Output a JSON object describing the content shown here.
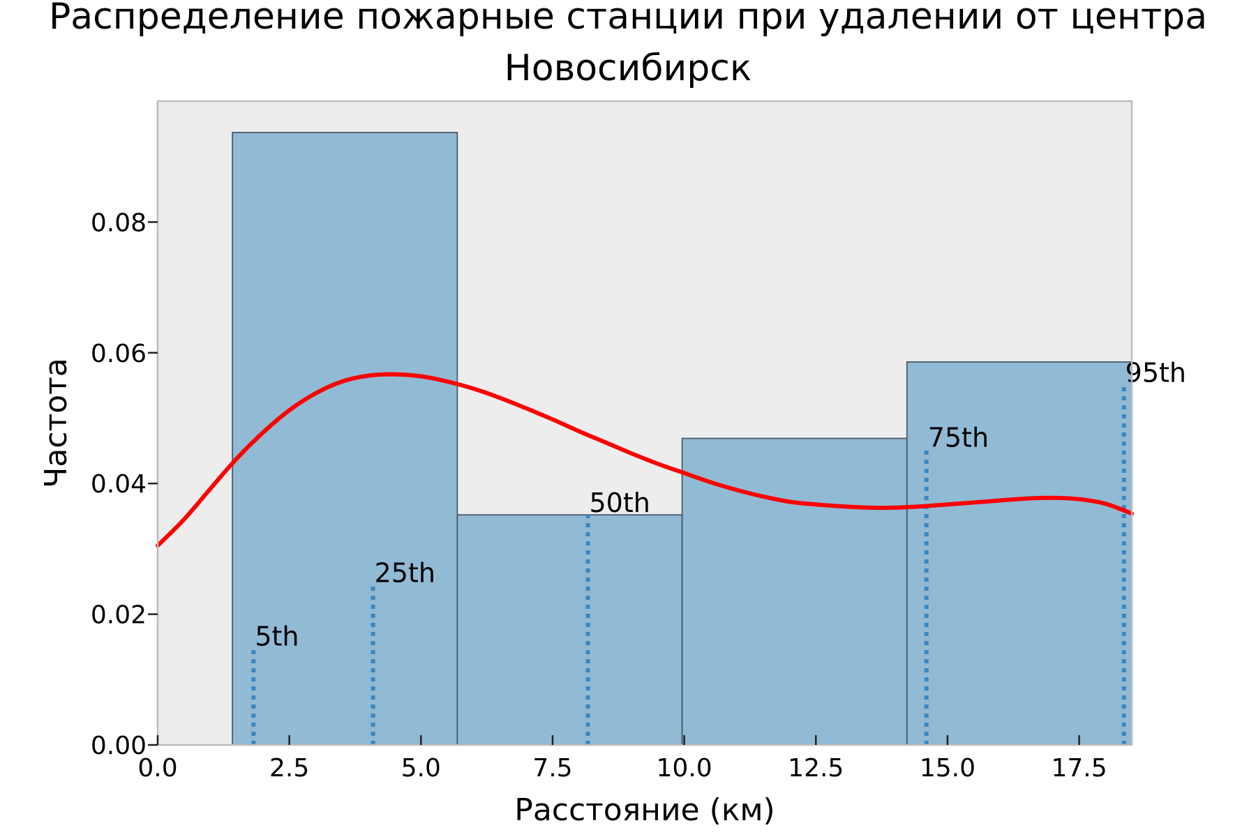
{
  "chart_data": {
    "type": "bar",
    "title_lines": [
      "Распределение пожарные станции при удалении от центра",
      "Новосибирск"
    ],
    "xlabel": "Расстояние (км)",
    "ylabel": "Частота",
    "xlim": [
      0,
      18.5
    ],
    "ylim": [
      0,
      0.0985
    ],
    "x_ticks": [
      0.0,
      2.5,
      5.0,
      7.5,
      10.0,
      12.5,
      15.0,
      17.5
    ],
    "x_tick_labels": [
      "0.0",
      "2.5",
      "5.0",
      "7.5",
      "10.0",
      "12.5",
      "15.0",
      "17.5"
    ],
    "y_ticks": [
      0.0,
      0.02,
      0.04,
      0.06,
      0.08
    ],
    "y_tick_labels": [
      "0.00",
      "0.02",
      "0.04",
      "0.06",
      "0.08"
    ],
    "grid": false,
    "histogram_bins": [
      {
        "x0": 1.42,
        "x1": 5.69,
        "value": 0.0937
      },
      {
        "x0": 5.69,
        "x1": 9.96,
        "value": 0.0352
      },
      {
        "x0": 9.96,
        "x1": 14.23,
        "value": 0.0469
      },
      {
        "x0": 14.23,
        "x1": 18.5,
        "value": 0.0586
      }
    ],
    "kde_curve": {
      "x": [
        0.0,
        0.5,
        1.0,
        1.5,
        2.0,
        2.5,
        3.0,
        3.5,
        4.0,
        4.5,
        5.0,
        5.5,
        6.0,
        6.5,
        7.0,
        7.5,
        8.0,
        8.5,
        9.0,
        9.5,
        10.0,
        10.5,
        11.0,
        11.5,
        12.0,
        12.5,
        13.0,
        13.5,
        14.0,
        14.5,
        15.0,
        15.5,
        16.0,
        16.5,
        17.0,
        17.5,
        18.0,
        18.5
      ],
      "y": [
        0.0305,
        0.0345,
        0.0392,
        0.0438,
        0.0478,
        0.0512,
        0.0538,
        0.0556,
        0.0565,
        0.0567,
        0.0564,
        0.0556,
        0.0545,
        0.0531,
        0.0515,
        0.0498,
        0.048,
        0.0463,
        0.0446,
        0.043,
        0.0416,
        0.0402,
        0.039,
        0.038,
        0.0372,
        0.0368,
        0.0365,
        0.0363,
        0.0363,
        0.0365,
        0.0368,
        0.0371,
        0.0374,
        0.0377,
        0.0378,
        0.0376,
        0.0369,
        0.0354
      ]
    },
    "percentiles": [
      {
        "label": "5th",
        "x": 1.82,
        "height": 0.0148
      },
      {
        "label": "25th",
        "x": 4.09,
        "height": 0.0245
      },
      {
        "label": "50th",
        "x": 8.17,
        "height": 0.0352
      },
      {
        "label": "75th",
        "x": 14.6,
        "height": 0.0452
      },
      {
        "label": "95th",
        "x": 18.35,
        "height": 0.0551
      }
    ],
    "colors": {
      "bar_fill": "#91bad5",
      "bar_edge": "#4a5a66",
      "kde_line": "#ff0000",
      "percentile_line": "#3a87c2",
      "plot_background": "#ededed",
      "frame": "#bdbdbd"
    }
  }
}
